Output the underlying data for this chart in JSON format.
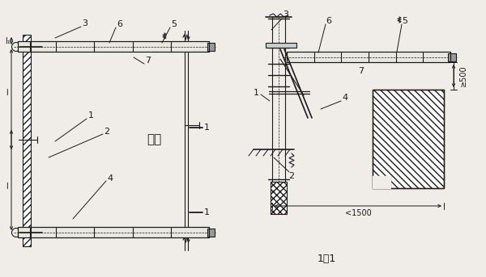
{
  "bg_color": "#f0ede8",
  "line_color": "#1a1a1a",
  "fig_width": 6.0,
  "fig_height": 3.43,
  "dpi": 100,
  "labels": {
    "jiegou": "结构",
    "section": "1－1",
    "dim_1500": "<1500",
    "dim_500": "≥500",
    "l_label": "l",
    "l1_label": "l₁",
    "num1": "1",
    "num2": "2",
    "num3": "3",
    "num4": "4",
    "num5": "5",
    "num6": "6",
    "num7": "7"
  }
}
